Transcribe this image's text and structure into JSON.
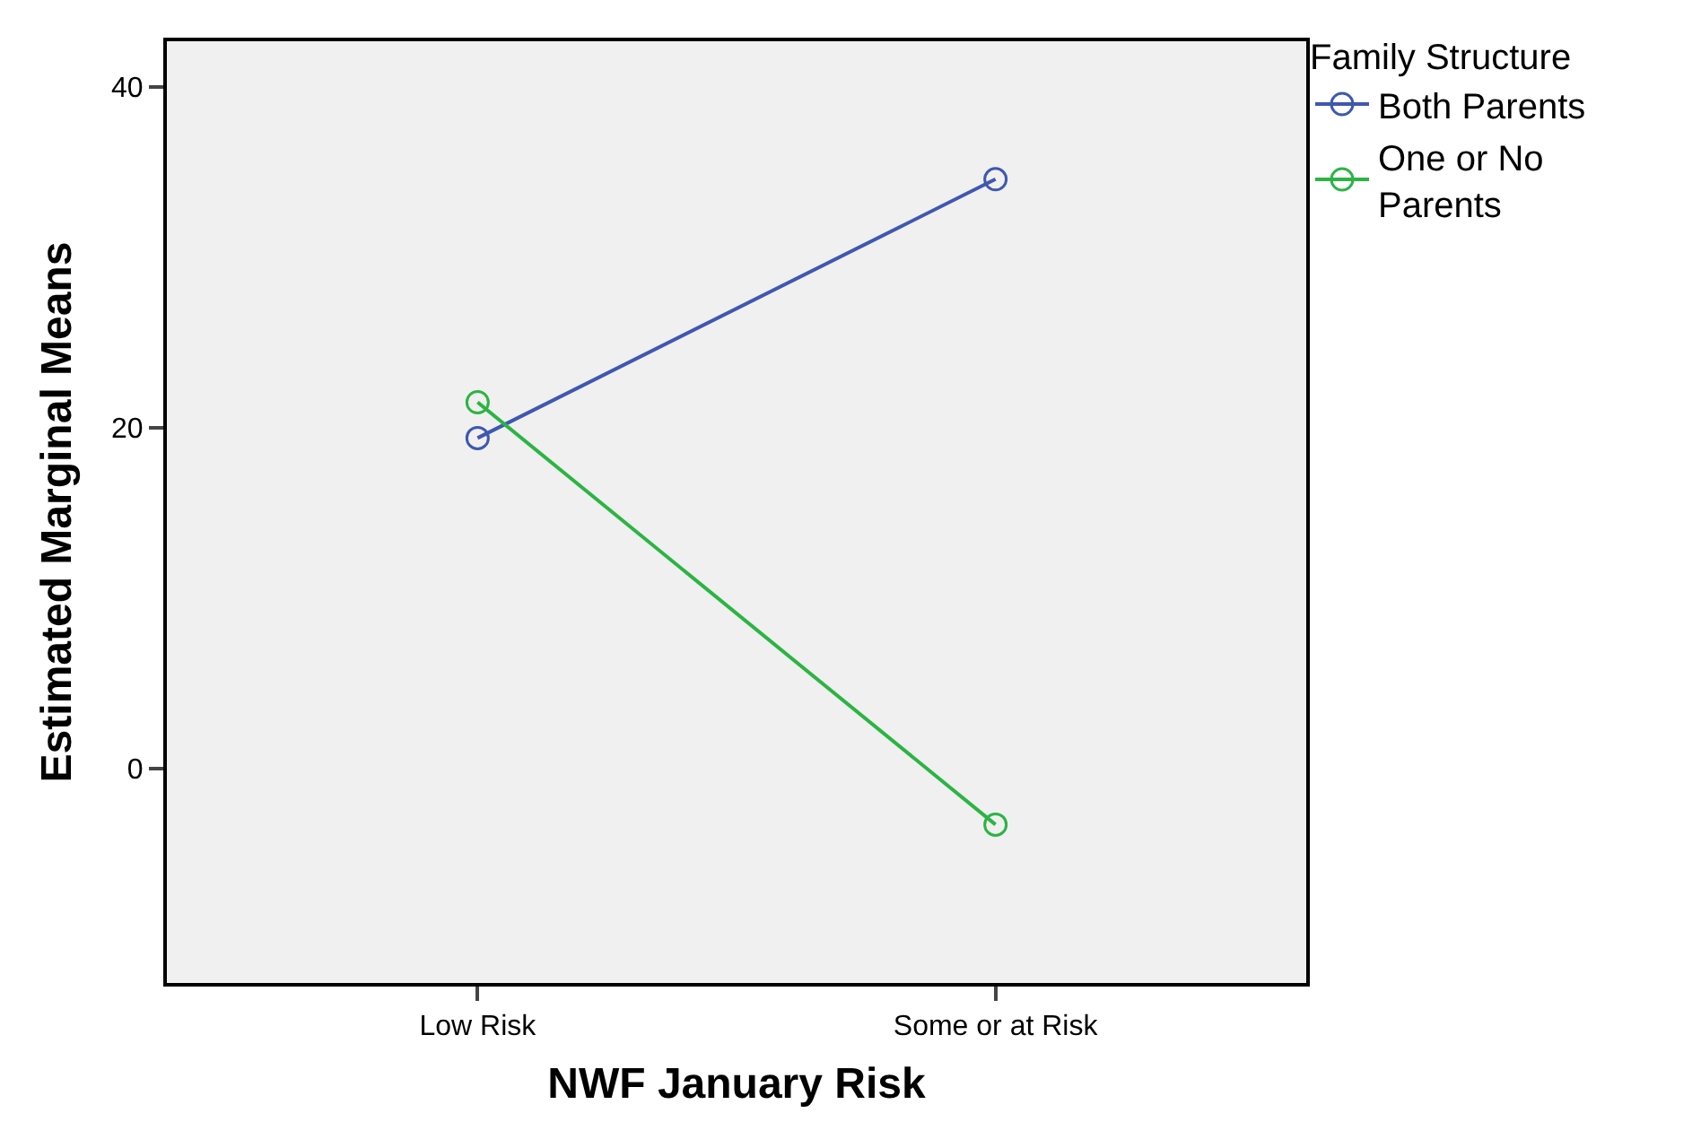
{
  "chart_data": {
    "type": "line",
    "xlabel": "NWF January Risk",
    "ylabel": "Estimated Marginal Means",
    "legend_title": "Family Structure",
    "categories": [
      "Low Risk",
      "Some or at Risk"
    ],
    "series": [
      {
        "name": "Both Parents",
        "color": "#3f58b0",
        "values": [
          19.4,
          34.6
        ]
      },
      {
        "name": "One or No Parents",
        "color": "#2cb443",
        "values": [
          21.5,
          -3.3
        ]
      }
    ],
    "ylim": [
      -12.6,
      42.7
    ],
    "yticks": [
      0,
      20,
      40
    ],
    "grid": false,
    "legend": "right",
    "marker": "circle",
    "line_style": "solid"
  }
}
